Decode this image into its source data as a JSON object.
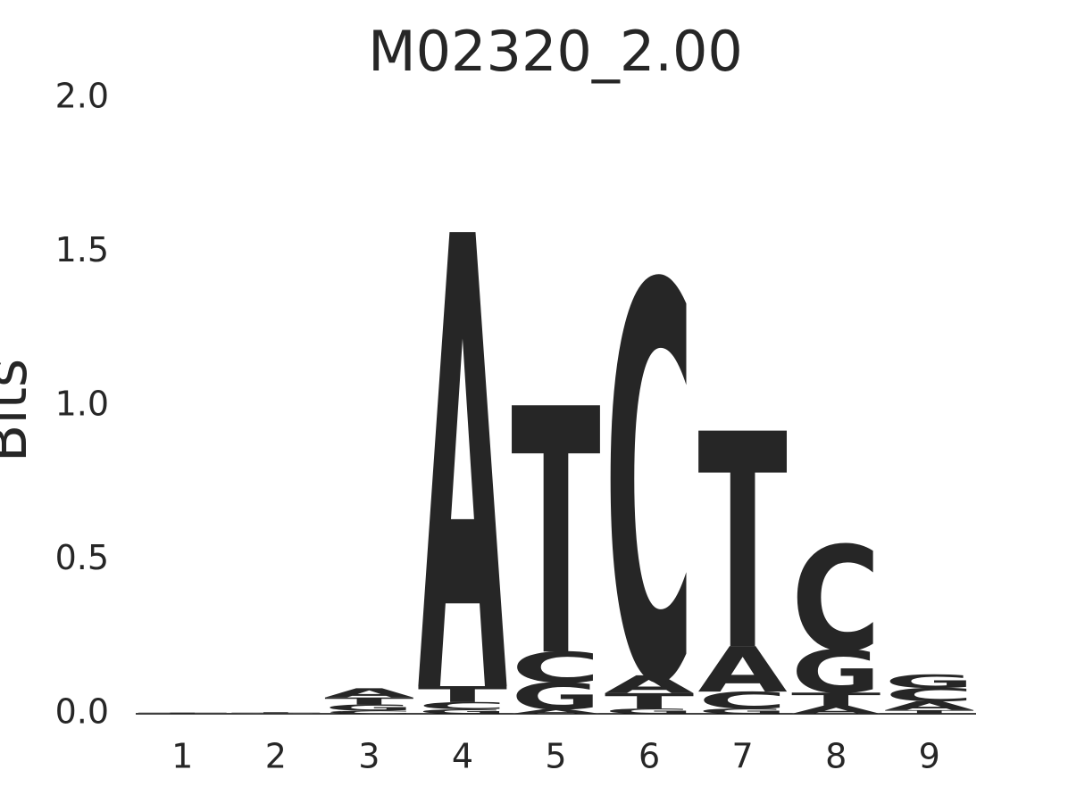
{
  "chart_data": {
    "type": "logo",
    "title": "M02320_2.00",
    "ylabel": "Bits",
    "categories": [
      "1",
      "2",
      "3",
      "4",
      "5",
      "6",
      "7",
      "8",
      "9"
    ],
    "series": [
      {
        "name": "A",
        "color": "#008000",
        "values": [
          0,
          0,
          0.03,
          1.475,
          0.015,
          0.058,
          0.148,
          0.026,
          0.029
        ]
      },
      {
        "name": "C",
        "color": "#0000ff",
        "values": [
          0,
          0,
          0.01,
          0.023,
          0.1,
          1.28,
          0.055,
          0.34,
          0.043
        ]
      },
      {
        "name": "G",
        "color": "#ffa500",
        "values": [
          0,
          0.002,
          0.02,
          0.015,
          0.087,
          0.017,
          0.017,
          0.14,
          0.044
        ]
      },
      {
        "name": "T",
        "color": "#ff0000",
        "values": [
          0.004,
          0.003,
          0.023,
          0.052,
          0.8,
          0.05,
          0.7,
          0.043,
          0.012
        ]
      }
    ],
    "ylim": [
      0,
      2.0
    ],
    "yticks": [
      {
        "value": 0,
        "label": "0.0"
      },
      {
        "value": 0.5,
        "label": "0.5"
      },
      {
        "value": 1.0,
        "label": "1.0"
      },
      {
        "value": 1.5,
        "label": "1.5"
      },
      {
        "value": 2.0,
        "label": "2.0"
      }
    ]
  }
}
